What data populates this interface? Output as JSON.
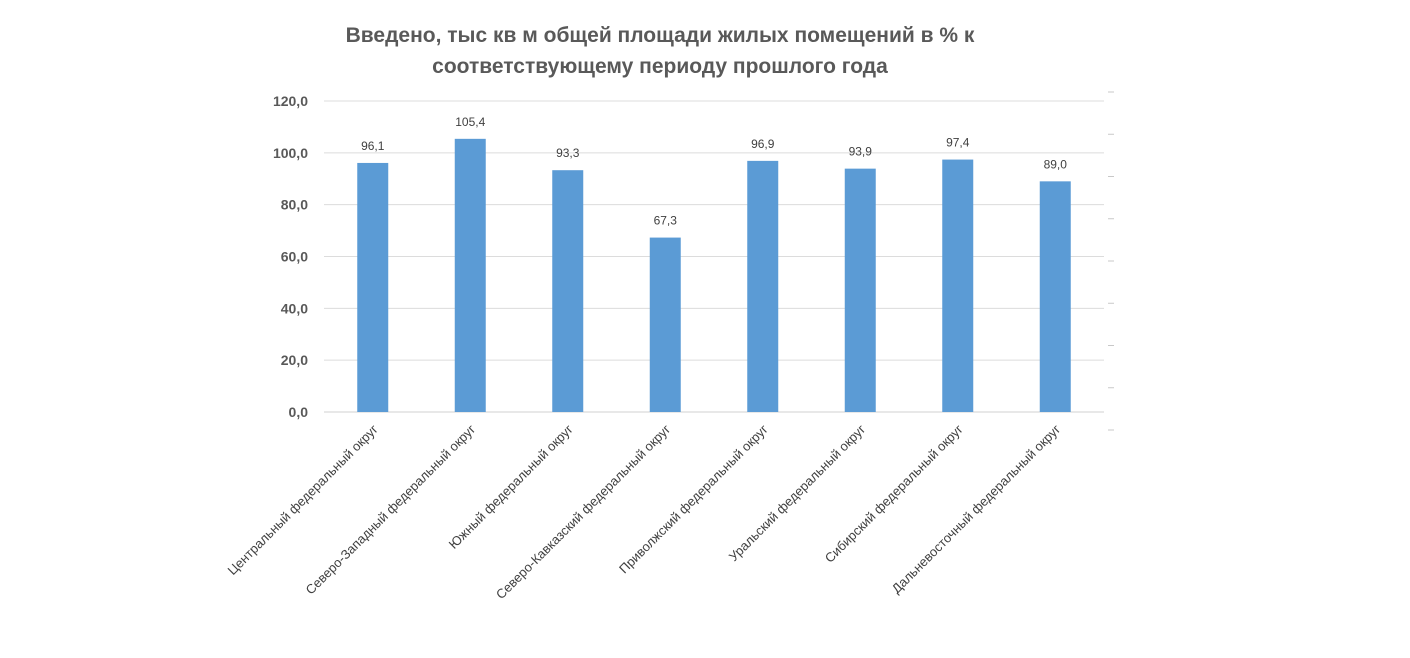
{
  "chart_data": {
    "type": "bar",
    "title_line1": "Введено, тыс кв м общей площади жилых помещений в % к",
    "title_line2": "соответствующему периоду прошлого года",
    "categories": [
      "Центральный федеральный округ",
      "Северо-Западный федеральный округ",
      "Южный федеральный округ",
      "Северо-Кавказский федеральный округ",
      "Приволжский федеральный округ",
      "Уральский федеральный округ",
      "Сибирский федеральный округ",
      "Дальневосточный федеральный округ"
    ],
    "values": [
      96.1,
      105.4,
      93.3,
      67.3,
      96.9,
      93.9,
      97.4,
      89.0
    ],
    "value_labels": [
      "96,1",
      "105,4",
      "93,3",
      "67,3",
      "96,9",
      "93,9",
      "97,4",
      "89,0"
    ],
    "yticks": [
      "0,0",
      "20,0",
      "40,0",
      "60,0",
      "80,0",
      "100,0",
      "120,0"
    ],
    "ylim": [
      0,
      120
    ],
    "bar_color": "#5b9bd5",
    "grid": true,
    "legend": "none"
  }
}
